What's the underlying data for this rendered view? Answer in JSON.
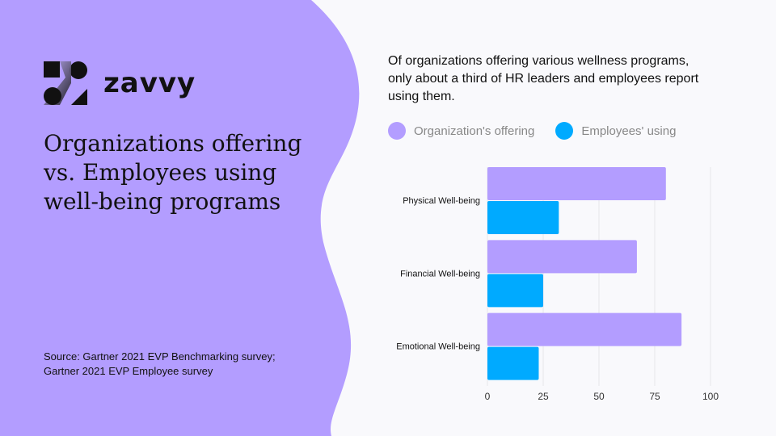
{
  "brand": {
    "name": "zavvy"
  },
  "title": "Organizations offering vs. Employees using well-being programs",
  "source": [
    "Source: Gartner 2021 EVP Benchmarking survey;",
    "Gartner 2021 EVP Employee survey"
  ],
  "colors": {
    "background_left": "#b39dff",
    "background_right": "#f9f9fc",
    "offering": "#b39dff",
    "using": "#00aaff"
  },
  "chart_data": {
    "type": "bar",
    "orientation": "horizontal",
    "subtitle": "Of organizations offering various wellness programs, only about a third of HR leaders and employees report using them.",
    "categories": [
      "Physical Well-being",
      "Financial Well-being",
      "Emotional Well-being"
    ],
    "series": [
      {
        "name": "Organization's offering",
        "values": [
          80,
          67,
          87
        ],
        "color": "#b39dff"
      },
      {
        "name": "Employees' using",
        "values": [
          32,
          25,
          23
        ],
        "color": "#00aaff"
      }
    ],
    "xlim": [
      0,
      100
    ],
    "xticks": [
      "0",
      "25",
      "50",
      "75",
      "100"
    ],
    "grid": true,
    "legend": "top"
  }
}
